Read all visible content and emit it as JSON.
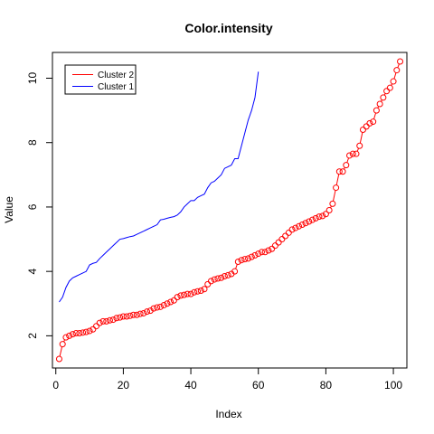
{
  "chart_data": {
    "type": "line",
    "title": "Color.intensity",
    "xlabel": "Index",
    "ylabel": "Value",
    "xlim": [
      -1,
      104
    ],
    "ylim": [
      1.0,
      10.8
    ],
    "x_ticks": [
      0,
      20,
      40,
      60,
      80,
      100
    ],
    "y_ticks": [
      2,
      4,
      6,
      8,
      10
    ],
    "grid": false,
    "legend_position": "top-left",
    "series": [
      {
        "name": "Cluster 2",
        "style": "points",
        "color": "#ff0000",
        "values": [
          1.28,
          1.74,
          1.95,
          2.0,
          2.05,
          2.08,
          2.08,
          2.1,
          2.12,
          2.15,
          2.2,
          2.3,
          2.4,
          2.45,
          2.45,
          2.48,
          2.5,
          2.55,
          2.57,
          2.6,
          2.6,
          2.62,
          2.65,
          2.65,
          2.68,
          2.7,
          2.75,
          2.78,
          2.85,
          2.88,
          2.9,
          2.95,
          3.0,
          3.05,
          3.1,
          3.2,
          3.25,
          3.27,
          3.3,
          3.3,
          3.35,
          3.38,
          3.4,
          3.45,
          3.6,
          3.7,
          3.75,
          3.78,
          3.8,
          3.85,
          3.88,
          3.92,
          4.0,
          4.3,
          4.35,
          4.38,
          4.4,
          4.45,
          4.5,
          4.55,
          4.6,
          4.6,
          4.65,
          4.7,
          4.8,
          4.9,
          5.0,
          5.1,
          5.2,
          5.3,
          5.35,
          5.4,
          5.45,
          5.5,
          5.55,
          5.6,
          5.65,
          5.7,
          5.72,
          5.78,
          5.9,
          6.1,
          6.6,
          7.1,
          7.1,
          7.3,
          7.6,
          7.65,
          7.65,
          7.9,
          8.4,
          8.5,
          8.6,
          8.65,
          9.0,
          9.2,
          9.4,
          9.6,
          9.7,
          9.9,
          10.25,
          10.52
        ]
      },
      {
        "name": "Cluster 1",
        "style": "line",
        "color": "#0000ff",
        "values": [
          3.05,
          3.2,
          3.5,
          3.7,
          3.8,
          3.85,
          3.9,
          3.95,
          4.0,
          4.2,
          4.25,
          4.28,
          4.4,
          4.5,
          4.6,
          4.7,
          4.8,
          4.9,
          5.0,
          5.02,
          5.05,
          5.08,
          5.1,
          5.15,
          5.2,
          5.25,
          5.3,
          5.35,
          5.4,
          5.45,
          5.6,
          5.62,
          5.65,
          5.68,
          5.7,
          5.75,
          5.85,
          6.0,
          6.1,
          6.2,
          6.2,
          6.3,
          6.35,
          6.4,
          6.6,
          6.75,
          6.8,
          6.9,
          7.0,
          7.2,
          7.25,
          7.3,
          7.5,
          7.5,
          7.9,
          8.3,
          8.7,
          9.0,
          9.4,
          10.2
        ]
      }
    ]
  }
}
